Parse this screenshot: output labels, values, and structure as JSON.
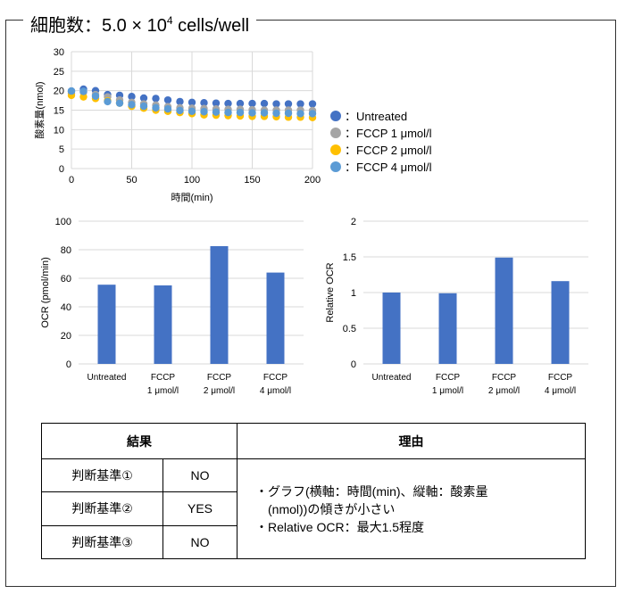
{
  "header": {
    "title_prefix": "細胞数：5.0 × 10",
    "title_exponent": "4",
    "title_suffix": " cells/well"
  },
  "colors": {
    "bar": "#4472c4",
    "untreated": "#4472c4",
    "fccp1": "#a5a5a5",
    "fccp2": "#ffc000",
    "fccp4": "#5b9bd5"
  },
  "chart_data": [
    {
      "type": "scatter",
      "xlabel": "時間(min)",
      "ylabel": "酸素量(nmol)",
      "xlim": [
        0,
        200
      ],
      "ylim": [
        0,
        30
      ],
      "xticks": [
        0,
        50,
        100,
        150,
        200
      ],
      "yticks": [
        0,
        5,
        10,
        15,
        20,
        25,
        30
      ],
      "grid": "both",
      "legend_position": "right",
      "series": [
        {
          "name": "：Untreated",
          "x": [
            0,
            10,
            20,
            30,
            40,
            50,
            60,
            70,
            80,
            90,
            100,
            110,
            120,
            130,
            140,
            150,
            160,
            170,
            180,
            190,
            200
          ],
          "y": [
            19.9,
            20.4,
            20.0,
            19.0,
            18.8,
            18.5,
            18.1,
            18.0,
            17.6,
            17.2,
            17.0,
            16.9,
            16.8,
            16.7,
            16.7,
            16.7,
            16.7,
            16.6,
            16.6,
            16.6,
            16.6
          ]
        },
        {
          "name": "：FCCP 1 μmol/l",
          "x": [
            0,
            10,
            20,
            30,
            40,
            50,
            60,
            70,
            80,
            90,
            100,
            110,
            120,
            130,
            140,
            150,
            160,
            170,
            180,
            190,
            200
          ],
          "y": [
            19.4,
            19.6,
            19.0,
            18.4,
            17.6,
            17.0,
            16.6,
            16.3,
            15.9,
            15.6,
            15.5,
            15.4,
            15.3,
            15.2,
            15.2,
            15.1,
            15.0,
            15.0,
            15.0,
            15.0,
            14.9
          ]
        },
        {
          "name": "：FCCP 2 μmol/l",
          "x": [
            0,
            10,
            20,
            30,
            40,
            50,
            60,
            70,
            80,
            90,
            100,
            110,
            120,
            130,
            140,
            150,
            160,
            170,
            180,
            190,
            200
          ],
          "y": [
            18.8,
            18.4,
            18.0,
            17.4,
            16.8,
            16.0,
            15.5,
            15.0,
            14.7,
            14.4,
            14.1,
            13.8,
            13.7,
            13.6,
            13.5,
            13.4,
            13.4,
            13.3,
            13.2,
            13.2,
            13.1
          ]
        },
        {
          "name": "：FCCP 4 μmol/l",
          "x": [
            0,
            10,
            20,
            30,
            40,
            50,
            60,
            70,
            80,
            90,
            100,
            110,
            120,
            130,
            140,
            150,
            160,
            170,
            180,
            190,
            200
          ],
          "y": [
            19.9,
            19.8,
            18.6,
            17.2,
            16.8,
            16.4,
            16.0,
            15.6,
            15.3,
            14.9,
            14.7,
            14.6,
            14.5,
            14.4,
            14.4,
            14.3,
            14.3,
            14.2,
            14.2,
            14.1,
            14.1
          ]
        }
      ]
    },
    {
      "type": "bar",
      "ylabel": "OCR (pmol/min)",
      "ylim": [
        0,
        100
      ],
      "yticks": [
        0,
        20,
        40,
        60,
        80,
        100
      ],
      "grid": "horizontal",
      "categories": [
        [
          "Untreated"
        ],
        [
          "FCCP",
          "1 μmol/l"
        ],
        [
          "FCCP",
          "2 μmol/l"
        ],
        [
          "FCCP",
          "4 μmol/l"
        ]
      ],
      "values": [
        55.5,
        55.0,
        82.5,
        64.0
      ]
    },
    {
      "type": "bar",
      "ylabel": "Relative OCR",
      "ylim": [
        0,
        2
      ],
      "yticks": [
        0,
        0.5,
        1,
        1.5,
        2
      ],
      "grid": "horizontal",
      "categories": [
        [
          "Untreated"
        ],
        [
          "FCCP",
          "1 μmol/l"
        ],
        [
          "FCCP",
          "2 μmol/l"
        ],
        [
          "FCCP",
          "4 μmol/l"
        ]
      ],
      "values": [
        1.0,
        0.99,
        1.49,
        1.16
      ]
    }
  ],
  "table": {
    "header_result": "結果",
    "header_reason": "理由",
    "rows": [
      {
        "criterion": "判断基準①",
        "value": "NO"
      },
      {
        "criterion": "判断基準②",
        "value": "YES"
      },
      {
        "criterion": "判断基準③",
        "value": "NO"
      }
    ],
    "reason_lines": [
      "・グラフ(横軸：時間(min)、縦軸：酸素量",
      "　(nmol))の傾きが小さい",
      "・Relative OCR：最大1.5程度"
    ]
  }
}
